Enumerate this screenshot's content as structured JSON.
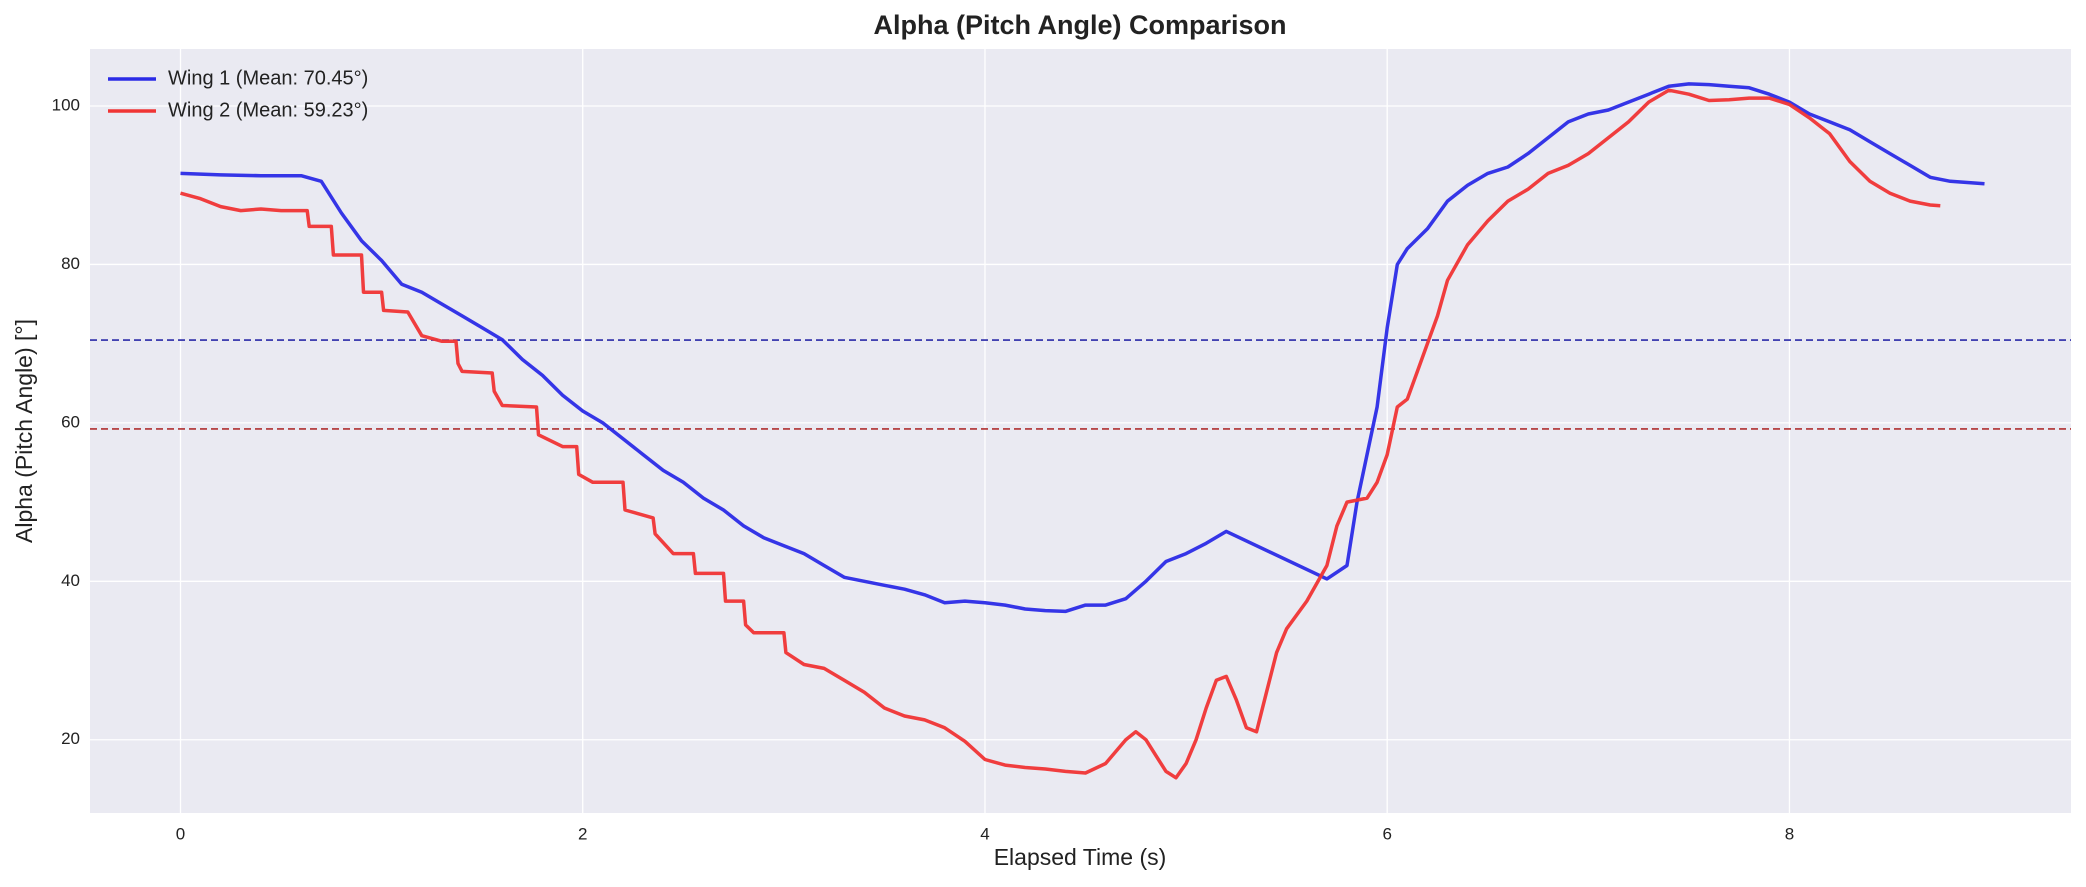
{
  "chart_data": {
    "type": "line",
    "title": "Alpha (Pitch Angle) Comparison",
    "xlabel": "Elapsed Time (s)",
    "ylabel": "Alpha (Pitch Angle) [°]",
    "xlim": [
      -0.45,
      9.4
    ],
    "ylim": [
      10.75,
      107.2
    ],
    "xticks": [
      0,
      2,
      4,
      6,
      8
    ],
    "yticks": [
      20,
      40,
      60,
      80,
      100
    ],
    "grid": true,
    "legend": "upper left",
    "series": [
      {
        "name": "Wing 1 (Mean: 70.45°)",
        "color": "#2b2be6",
        "x": [
          0,
          0.2,
          0.4,
          0.6,
          0.7,
          0.8,
          0.9,
          1.0,
          1.1,
          1.2,
          1.3,
          1.4,
          1.5,
          1.6,
          1.7,
          1.8,
          1.9,
          2.0,
          2.1,
          2.2,
          2.3,
          2.4,
          2.5,
          2.6,
          2.7,
          2.8,
          2.9,
          3.0,
          3.1,
          3.2,
          3.3,
          3.4,
          3.5,
          3.6,
          3.7,
          3.8,
          3.9,
          4.0,
          4.1,
          4.2,
          4.3,
          4.4,
          4.5,
          4.6,
          4.7,
          4.8,
          4.9,
          5.0,
          5.1,
          5.2,
          5.7,
          5.8,
          5.85,
          5.95,
          6.0,
          6.05,
          6.1,
          6.2,
          6.3,
          6.4,
          6.5,
          6.6,
          6.7,
          6.8,
          6.9,
          7.0,
          7.1,
          7.2,
          7.3,
          7.4,
          7.5,
          7.6,
          7.7,
          7.8,
          7.9,
          8.0,
          8.1,
          8.2,
          8.3,
          8.4,
          8.5,
          8.6,
          8.7,
          8.8,
          8.97
        ],
        "values": [
          91.5,
          91.3,
          91.2,
          91.2,
          90.5,
          86.5,
          83,
          80.5,
          77.5,
          76.5,
          75,
          73.5,
          72,
          70.5,
          68,
          66,
          63.5,
          61.5,
          60,
          58,
          56,
          54,
          52.5,
          50.5,
          49,
          47,
          45.5,
          44.5,
          43.5,
          42,
          40.5,
          40,
          39.5,
          39,
          38.3,
          37.3,
          37.5,
          37.3,
          37,
          36.5,
          36.3,
          36.2,
          37,
          37,
          37.8,
          40,
          42.5,
          43.5,
          44.8,
          46.3,
          40.3,
          42,
          50,
          62,
          72,
          80,
          82,
          84.5,
          88,
          90,
          91.5,
          92.3,
          94,
          96,
          98,
          99,
          99.5,
          100.5,
          101.5,
          102.5,
          102.8,
          102.7,
          102.5,
          102.3,
          101.5,
          100.5,
          99,
          98,
          97,
          95.5,
          94,
          92.5,
          91,
          90.5,
          90.2
        ]
      },
      {
        "name": "Wing 2 (Mean: 59.23°)",
        "color": "#f03434",
        "x": [
          0,
          0.1,
          0.2,
          0.3,
          0.4,
          0.5,
          0.63,
          0.64,
          0.75,
          0.76,
          0.9,
          0.91,
          1.0,
          1.01,
          1.13,
          1.2,
          1.3,
          1.37,
          1.38,
          1.4,
          1.55,
          1.56,
          1.6,
          1.77,
          1.78,
          1.9,
          1.97,
          1.98,
          2.05,
          2.2,
          2.21,
          2.35,
          2.36,
          2.45,
          2.55,
          2.56,
          2.7,
          2.71,
          2.8,
          2.81,
          2.85,
          3.0,
          3.01,
          3.1,
          3.2,
          3.3,
          3.4,
          3.5,
          3.6,
          3.7,
          3.8,
          3.9,
          4.0,
          4.1,
          4.2,
          4.3,
          4.4,
          4.5,
          4.6,
          4.7,
          4.75,
          4.8,
          4.85,
          4.9,
          4.95,
          5.0,
          5.05,
          5.1,
          5.15,
          5.2,
          5.25,
          5.3,
          5.35,
          5.4,
          5.45,
          5.5,
          5.6,
          5.7,
          5.75,
          5.8,
          5.9,
          5.95,
          6.0,
          6.05,
          6.1,
          6.15,
          6.2,
          6.25,
          6.3,
          6.4,
          6.5,
          6.6,
          6.7,
          6.8,
          6.9,
          7.0,
          7.1,
          7.2,
          7.3,
          7.4,
          7.5,
          7.6,
          7.7,
          7.8,
          7.9,
          8.0,
          8.1,
          8.2,
          8.3,
          8.4,
          8.5,
          8.6,
          8.7,
          8.75
        ],
        "values": [
          89,
          88.3,
          87.3,
          86.8,
          87,
          86.8,
          86.8,
          84.8,
          84.8,
          81.2,
          81.2,
          76.5,
          76.5,
          74.2,
          74,
          71,
          70.3,
          70.3,
          67.5,
          66.5,
          66.3,
          64,
          62.2,
          62,
          58.5,
          57,
          57,
          53.5,
          52.5,
          52.5,
          49,
          48,
          46,
          43.5,
          43.5,
          41,
          41,
          37.5,
          37.5,
          34.5,
          33.5,
          33.5,
          31,
          29.5,
          29,
          27.5,
          26,
          24,
          23,
          22.5,
          21.5,
          19.8,
          17.5,
          16.8,
          16.5,
          16.3,
          16,
          15.8,
          17,
          20,
          21,
          20,
          18,
          16,
          15.2,
          17,
          20,
          24,
          27.5,
          28,
          25,
          21.5,
          21,
          26,
          31,
          34,
          37.5,
          42,
          47,
          50,
          50.5,
          52.5,
          56,
          62,
          63,
          66.5,
          70,
          73.5,
          78,
          82.5,
          85.5,
          88,
          89.5,
          91.5,
          92.5,
          94,
          96,
          98,
          100.5,
          102,
          101.5,
          100.7,
          100.8,
          101,
          101,
          100.2,
          98.5,
          96.5,
          93,
          90.5,
          89,
          88,
          87.5,
          87.4
        ]
      }
    ],
    "reference_lines": [
      {
        "value": 70.45,
        "color": "#2a2aa8"
      },
      {
        "value": 59.23,
        "color": "#b03030"
      }
    ]
  }
}
